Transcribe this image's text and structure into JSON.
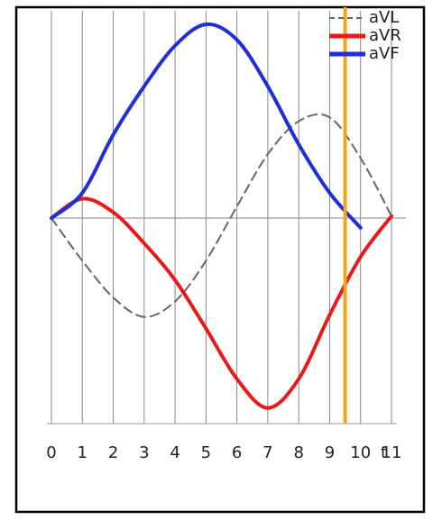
{
  "chart_data": {
    "type": "line",
    "x": [
      0,
      1,
      2,
      3,
      4,
      5,
      6,
      7,
      8,
      9,
      10,
      11
    ],
    "xticks": [
      0,
      1,
      2,
      3,
      4,
      5,
      6,
      7,
      8,
      9,
      10,
      11
    ],
    "xlim": [
      0,
      11
    ],
    "ylim": [
      -1.1,
      1.1
    ],
    "xlabel": "t",
    "grid": true,
    "legend": "upper right",
    "series": [
      {
        "name": "aVL",
        "color": "#666666",
        "dashed": true,
        "values": [
          0,
          -0.22,
          -0.41,
          -0.51,
          -0.43,
          -0.22,
          0.06,
          0.33,
          0.5,
          0.52,
          0.31,
          0.01
        ]
      },
      {
        "name": "aVR",
        "color": "#e8191b",
        "values": [
          0,
          0.1,
          0.03,
          -0.13,
          -0.32,
          -0.57,
          -0.83,
          -0.98,
          -0.83,
          -0.5,
          -0.2,
          0.01
        ]
      },
      {
        "name": "aVF",
        "color": "#1f2fd6",
        "values": [
          0,
          0.13,
          0.43,
          0.68,
          0.89,
          1.0,
          0.92,
          0.68,
          0.38,
          0.13,
          -0.05,
          null
        ]
      }
    ],
    "vlines": [
      {
        "x": 9.5,
        "color": "#f5a31a"
      }
    ]
  }
}
